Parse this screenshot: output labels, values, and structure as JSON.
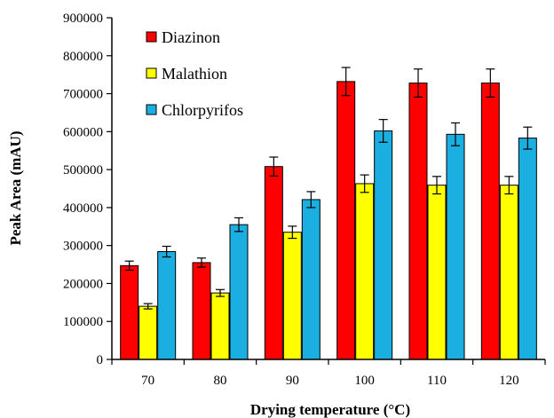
{
  "chart_data": {
    "type": "bar",
    "title": "",
    "xlabel": "Drying temperature (°C)",
    "ylabel": "Peak Area (mAU)",
    "categories": [
      "70",
      "80",
      "90",
      "100",
      "110",
      "120"
    ],
    "ylim": [
      0,
      900000
    ],
    "yticks": [
      0,
      100000,
      200000,
      300000,
      400000,
      500000,
      600000,
      700000,
      800000,
      900000
    ],
    "grid": false,
    "legend_position": "top-left",
    "series": [
      {
        "name": "Diazinon",
        "color": "#ff0000",
        "values": [
          247000,
          255000,
          508000,
          732000,
          728000,
          728000
        ],
        "errors": [
          12000,
          12000,
          25000,
          37000,
          37000,
          37000
        ]
      },
      {
        "name": "Malathion",
        "color": "#ffff00",
        "values": [
          140000,
          175000,
          335000,
          463000,
          459000,
          459000
        ],
        "errors": [
          7000,
          9000,
          16000,
          23000,
          23000,
          23000
        ]
      },
      {
        "name": "Chlorpyrifos",
        "color": "#1aafe0",
        "values": [
          284000,
          355000,
          421000,
          602000,
          593000,
          583000
        ],
        "errors": [
          14000,
          18000,
          21000,
          30000,
          30000,
          29000
        ]
      }
    ]
  }
}
